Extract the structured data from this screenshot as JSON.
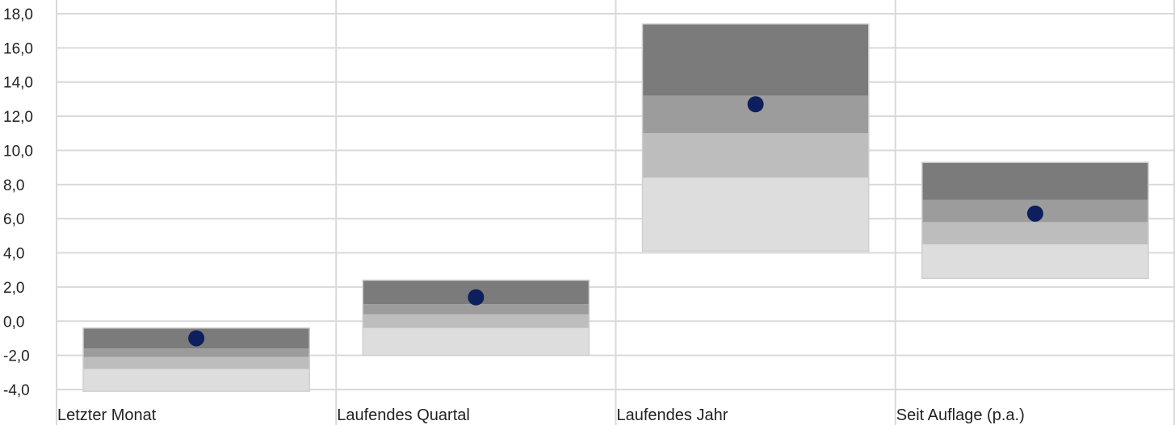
{
  "chart_data": {
    "type": "bar",
    "subtype": "quartile-range-floating-bars",
    "categories": [
      "Letzter Monat",
      "Laufendes Quartal",
      "Laufendes Jahr",
      "Seit Auflage (p.a.)"
    ],
    "y_tick_labels": [
      "-4,0",
      "-2,0",
      "0,0",
      "2,0",
      "4,0",
      "6,0",
      "8,0",
      "10,0",
      "12,0",
      "14,0",
      "16,0",
      "18,0"
    ],
    "ylim": [
      -4,
      18
    ],
    "y_tick_step": 2,
    "grid": true,
    "legend": "none",
    "series": [
      {
        "kind": "quartile-bands",
        "boundaries": [
          [
            -4.1,
            -2.8,
            -2.1,
            -1.6,
            -0.4
          ],
          [
            -2.0,
            -0.4,
            0.4,
            1.0,
            2.4
          ],
          [
            4.1,
            8.4,
            11.0,
            13.2,
            17.4
          ],
          [
            2.5,
            4.5,
            5.8,
            7.1,
            9.3
          ]
        ]
      },
      {
        "kind": "fund-marker",
        "values": [
          -1.0,
          1.4,
          12.7,
          6.3
        ]
      }
    ],
    "colors": {
      "q1_top": "#7b7b7c",
      "q2": "#9c9c9d",
      "q3": "#bdbdbe",
      "q4_bottom": "#dddddd",
      "marker": "#0d1f5c",
      "grid": "#d9d9d9"
    }
  }
}
